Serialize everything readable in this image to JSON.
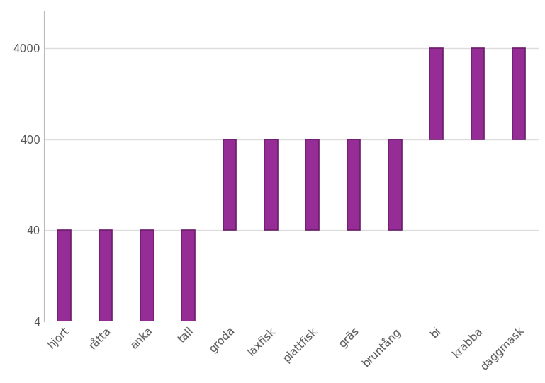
{
  "chart_data": {
    "type": "range_bar",
    "categories": [
      "hjort",
      "råtta",
      "anka",
      "tall",
      "groda",
      "laxfisk",
      "plattfisk",
      "gräs",
      "bruntång",
      "bi",
      "krabba",
      "daggmask"
    ],
    "low": [
      4,
      4,
      4,
      4,
      40,
      40,
      40,
      40,
      40,
      400,
      400,
      400
    ],
    "high": [
      40,
      40,
      40,
      40,
      400,
      400,
      400,
      400,
      400,
      4000,
      4000,
      4000
    ],
    "color": "#962d96",
    "log": "y",
    "ylim": [
      4,
      10000
    ],
    "yticks": [
      4,
      40,
      400,
      4000
    ],
    "grid": true
  }
}
